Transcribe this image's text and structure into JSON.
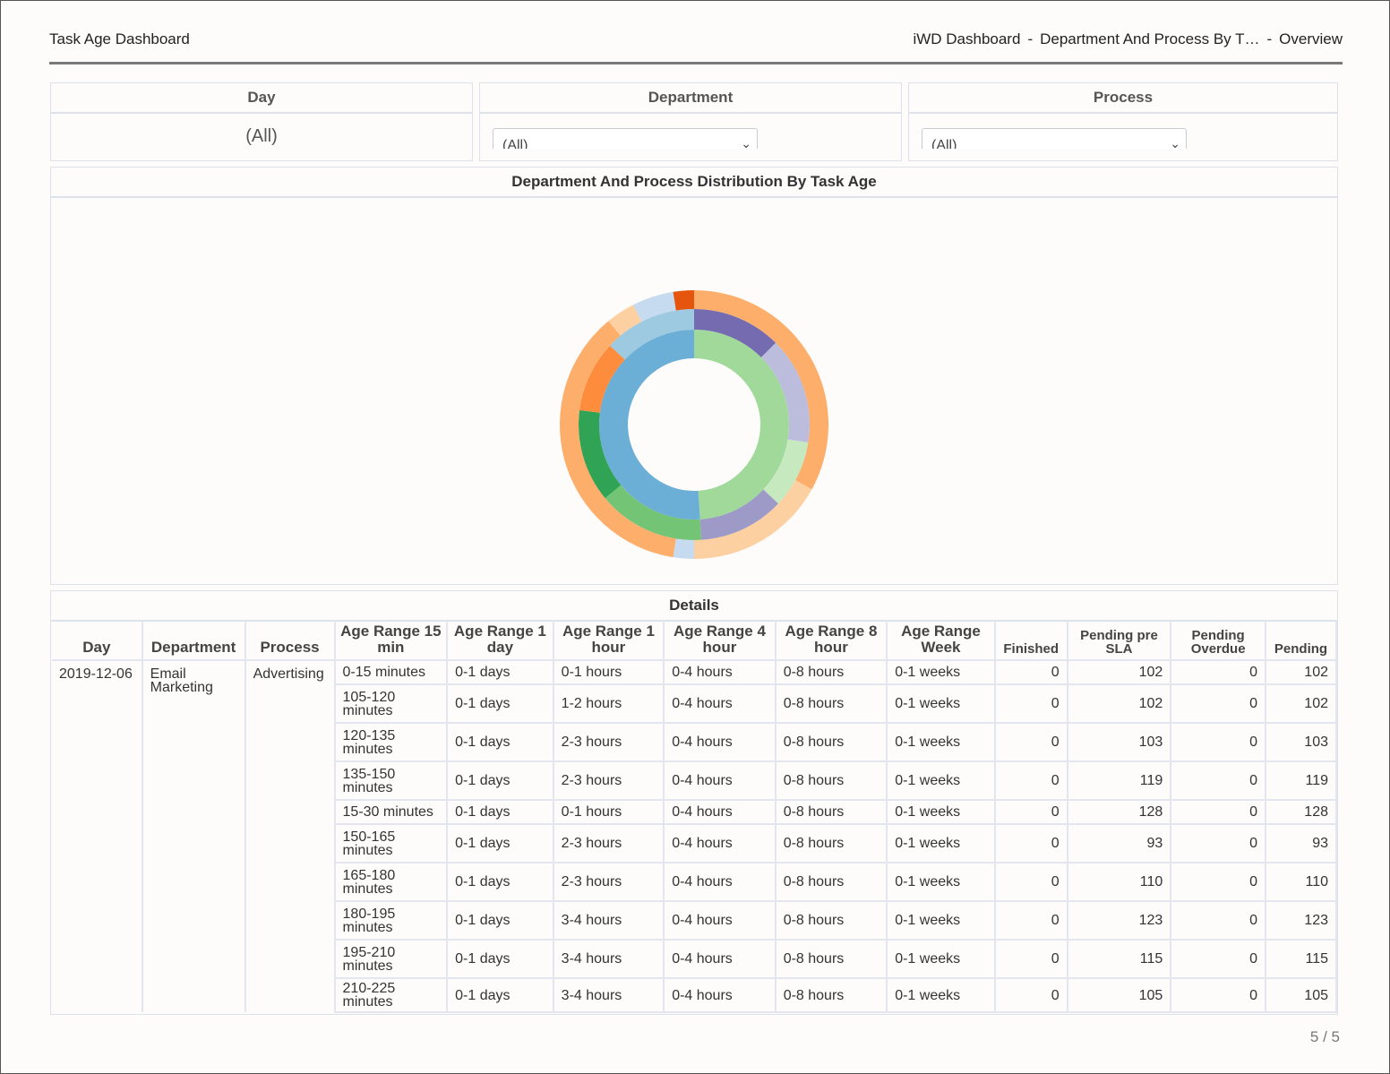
{
  "header": {
    "title": "Task Age Dashboard",
    "crumbs": [
      "iWD Dashboard",
      "Department And Process By T…",
      "Overview"
    ]
  },
  "filters": {
    "day": {
      "label": "Day",
      "value": "(All)"
    },
    "department": {
      "label": "Department",
      "value": "(All)"
    },
    "process": {
      "label": "Process",
      "value": "(All)"
    }
  },
  "chart": {
    "title": "Department And Process Distribution By Task Age",
    "rings": [
      {
        "name": "inner",
        "segments": [
          {
            "share": 0.49,
            "color": "#a1d99b"
          },
          {
            "share": 0.51,
            "color": "#6baed6"
          }
        ]
      },
      {
        "name": "middle",
        "segments": [
          {
            "share": 0.125,
            "color": "#756bb1"
          },
          {
            "share": 0.15,
            "color": "#bcbddc"
          },
          {
            "share": 0.095,
            "color": "#c7e9c0"
          },
          {
            "share": 0.12,
            "color": "#9e9ac8"
          },
          {
            "share": 0.15,
            "color": "#74c476"
          },
          {
            "share": 0.13,
            "color": "#31a354"
          },
          {
            "share": 0.1,
            "color": "#fd8d3c"
          },
          {
            "share": 0.13,
            "color": "#9ecae1"
          }
        ]
      },
      {
        "name": "outer",
        "segments": [
          {
            "share": 0.33,
            "color": "#fdae6b"
          },
          {
            "share": 0.17,
            "color": "#fdd0a2"
          },
          {
            "share": 0.025,
            "color": "#c6dbef"
          },
          {
            "share": 0.365,
            "color": "#fdae6b"
          },
          {
            "share": 0.035,
            "color": "#fdd0a2"
          },
          {
            "share": 0.05,
            "color": "#c6dbef"
          },
          {
            "share": 0.025,
            "color": "#e6550d"
          }
        ]
      }
    ]
  },
  "details": {
    "title": "Details",
    "columns": [
      "Day",
      "Department",
      "Process",
      "Age Range 15 min",
      "Age Range 1 day",
      "Age Range 1 hour",
      "Age Range 4 hour",
      "Age Range 8 hour",
      "Age Range Week",
      "Finished",
      "Pending pre SLA",
      "Pending Overdue",
      "Pending"
    ],
    "day": "2019-12-06",
    "department": "Email Marketing",
    "process": "Advertising",
    "rows": [
      [
        "0-15 minutes",
        "0-1 days",
        "0-1 hours",
        "0-4 hours",
        "0-8 hours",
        "0-1 weeks",
        "0",
        "102",
        "0",
        "102"
      ],
      [
        "105-120 minutes",
        "0-1 days",
        "1-2 hours",
        "0-4 hours",
        "0-8 hours",
        "0-1 weeks",
        "0",
        "102",
        "0",
        "102"
      ],
      [
        "120-135 minutes",
        "0-1 days",
        "2-3 hours",
        "0-4 hours",
        "0-8 hours",
        "0-1 weeks",
        "0",
        "103",
        "0",
        "103"
      ],
      [
        "135-150 minutes",
        "0-1 days",
        "2-3 hours",
        "0-4 hours",
        "0-8 hours",
        "0-1 weeks",
        "0",
        "119",
        "0",
        "119"
      ],
      [
        "15-30 minutes",
        "0-1 days",
        "0-1 hours",
        "0-4 hours",
        "0-8 hours",
        "0-1 weeks",
        "0",
        "128",
        "0",
        "128"
      ],
      [
        "150-165 minutes",
        "0-1 days",
        "2-3 hours",
        "0-4 hours",
        "0-8 hours",
        "0-1 weeks",
        "0",
        "93",
        "0",
        "93"
      ],
      [
        "165-180 minutes",
        "0-1 days",
        "2-3 hours",
        "0-4 hours",
        "0-8 hours",
        "0-1 weeks",
        "0",
        "110",
        "0",
        "110"
      ],
      [
        "180-195 minutes",
        "0-1 days",
        "3-4 hours",
        "0-4 hours",
        "0-8 hours",
        "0-1 weeks",
        "0",
        "123",
        "0",
        "123"
      ],
      [
        "195-210 minutes",
        "0-1 days",
        "3-4 hours",
        "0-4 hours",
        "0-8 hours",
        "0-1 weeks",
        "0",
        "115",
        "0",
        "115"
      ],
      [
        "210-225 minutes",
        "0-1 days",
        "3-4 hours",
        "0-4 hours",
        "0-8 hours",
        "0-1 weeks",
        "0",
        "105",
        "0",
        "105"
      ]
    ]
  },
  "pager": "5 / 5"
}
